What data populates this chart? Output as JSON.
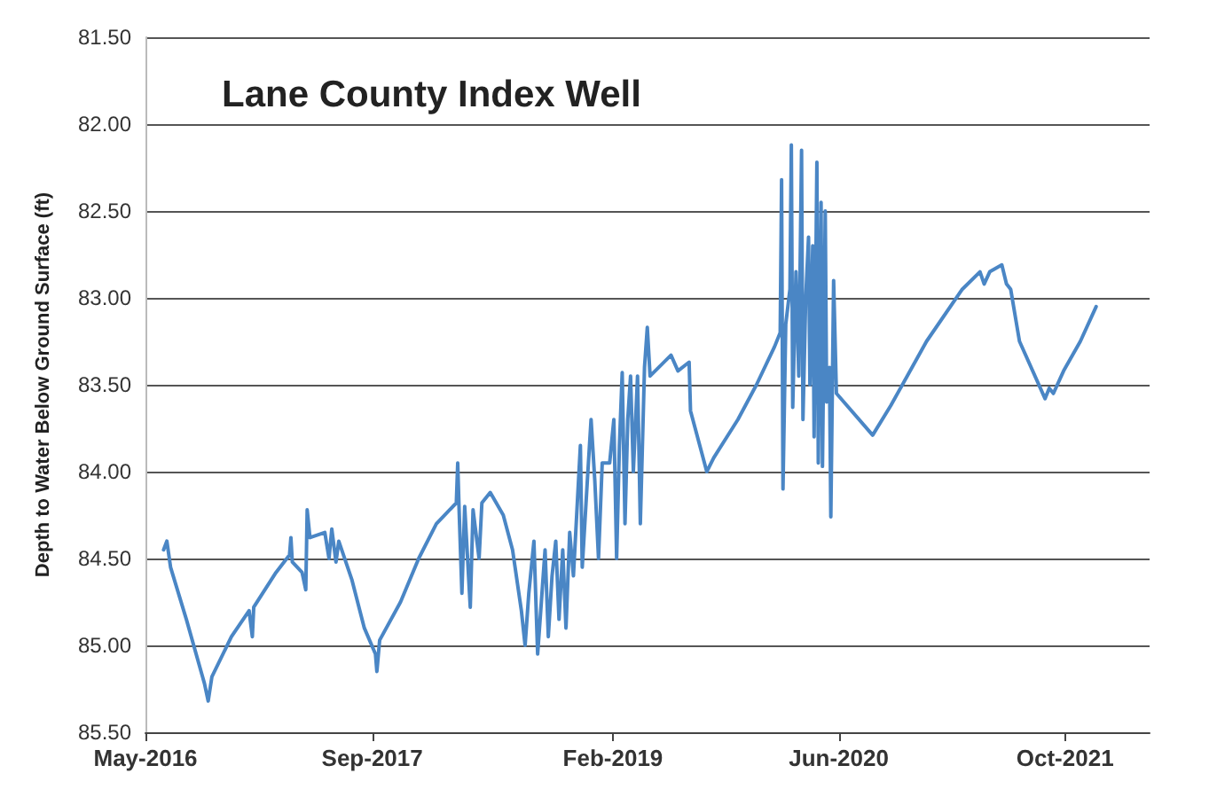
{
  "chart_data": {
    "type": "line",
    "title": "Lane County Index Well",
    "ylabel": "Depth to Water Below Ground Surface (ft)",
    "xlim": [
      "2016-05-01",
      "2022-04-01"
    ],
    "xticks": [
      {
        "value": "2016-05-01",
        "label": "May-2016"
      },
      {
        "value": "2017-09-01",
        "label": "Sep-2017"
      },
      {
        "value": "2019-02-01",
        "label": "Feb-2019"
      },
      {
        "value": "2020-06-01",
        "label": "Jun-2020"
      },
      {
        "value": "2021-10-01",
        "label": "Oct-2021"
      }
    ],
    "ylim": [
      85.5,
      81.5
    ],
    "yticks": [
      {
        "value": 81.5,
        "label": "81.50"
      },
      {
        "value": 82,
        "label": "82.00"
      },
      {
        "value": 82.5,
        "label": "82.50"
      },
      {
        "value": 83,
        "label": "83.00"
      },
      {
        "value": 83.5,
        "label": "83.50"
      },
      {
        "value": 84,
        "label": "84.00"
      },
      {
        "value": 84.5,
        "label": "84.50"
      },
      {
        "value": 85,
        "label": "85.00"
      },
      {
        "value": 85.5,
        "label": "85.50"
      }
    ],
    "grid": "y",
    "x": [
      "2016-06-09",
      "2016-06-16",
      "2016-06-24",
      "2016-07-28",
      "2016-09-05",
      "2016-09-13",
      "2016-09-21",
      "2016-11-02",
      "2016-12-10",
      "2016-12-17",
      "2016-12-20",
      "2017-02-06",
      "2017-03-07",
      "2017-03-10",
      "2017-03-13",
      "2017-04-03",
      "2017-04-11",
      "2017-04-14",
      "2017-04-20",
      "2017-05-22",
      "2017-05-31",
      "2017-06-06",
      "2017-06-15",
      "2017-06-21",
      "2017-07-19",
      "2017-08-15",
      "2017-09-08",
      "2017-09-11",
      "2017-09-17",
      "2017-11-01",
      "2017-12-10",
      "2018-01-17",
      "2018-03-01",
      "2018-03-04",
      "2018-03-07",
      "2018-03-13",
      "2018-03-19",
      "2018-03-31",
      "2018-04-06",
      "2018-04-19",
      "2018-04-25",
      "2018-05-13",
      "2018-06-10",
      "2018-06-30",
      "2018-07-19",
      "2018-07-27",
      "2018-08-04",
      "2018-08-15",
      "2018-08-23",
      "2018-08-31",
      "2018-09-08",
      "2018-09-15",
      "2018-09-23",
      "2018-10-01",
      "2018-10-08",
      "2018-10-16",
      "2018-10-23",
      "2018-10-31",
      "2018-11-08",
      "2018-11-23",
      "2018-11-27",
      "2018-12-08",
      "2018-12-16",
      "2018-12-24",
      "2019-01-01",
      "2019-01-09",
      "2019-01-25",
      "2019-02-03",
      "2019-02-09",
      "2019-02-15",
      "2019-02-21",
      "2019-02-27",
      "2019-03-05",
      "2019-03-11",
      "2019-03-17",
      "2019-03-26",
      "2019-04-01",
      "2019-04-10",
      "2019-04-16",
      "2019-04-22",
      "2019-06-06",
      "2019-06-21",
      "2019-07-15",
      "2019-07-18",
      "2019-08-22",
      "2019-09-06",
      "2019-10-28",
      "2019-12-07",
      "2020-01-15",
      "2020-01-27",
      "2020-01-30",
      "2020-02-02",
      "2020-02-08",
      "2020-02-17",
      "2020-02-20",
      "2020-02-23",
      "2020-03-01",
      "2020-03-07",
      "2020-03-13",
      "2020-03-16",
      "2020-03-22",
      "2020-03-28",
      "2020-03-31",
      "2020-04-06",
      "2020-04-09",
      "2020-04-15",
      "2020-04-18",
      "2020-04-24",
      "2020-04-27",
      "2020-05-03",
      "2020-05-06",
      "2020-05-12",
      "2020-05-15",
      "2020-05-21",
      "2020-05-27",
      "2020-08-13",
      "2020-09-21",
      "2020-12-07",
      "2021-02-22",
      "2021-04-01",
      "2021-04-10",
      "2021-04-22",
      "2021-05-18",
      "2021-05-28",
      "2021-06-06",
      "2021-06-25",
      "2021-08-19",
      "2021-08-28",
      "2021-09-06",
      "2021-09-28",
      "2021-11-03",
      "2021-12-07"
    ],
    "series": [
      {
        "color": "#4a86c5",
        "values": [
          84.45,
          84.4,
          84.55,
          84.85,
          85.22,
          85.32,
          85.18,
          84.95,
          84.8,
          84.95,
          84.78,
          84.58,
          84.48,
          84.38,
          84.52,
          84.58,
          84.68,
          84.22,
          84.38,
          84.35,
          84.5,
          84.33,
          84.52,
          84.4,
          84.62,
          84.9,
          85.05,
          85.15,
          84.97,
          84.75,
          84.5,
          84.3,
          84.18,
          83.95,
          84.22,
          84.7,
          84.2,
          84.78,
          84.22,
          84.5,
          84.18,
          84.12,
          84.25,
          84.45,
          84.8,
          85.0,
          84.7,
          84.4,
          85.05,
          84.75,
          84.45,
          84.95,
          84.6,
          84.4,
          84.85,
          84.45,
          84.9,
          84.35,
          84.6,
          83.85,
          84.55,
          84.05,
          83.7,
          84.05,
          84.5,
          83.95,
          83.95,
          83.7,
          84.5,
          83.85,
          83.43,
          84.3,
          83.7,
          83.45,
          84.0,
          83.45,
          84.3,
          83.4,
          83.17,
          83.45,
          83.33,
          83.42,
          83.37,
          83.65,
          84.0,
          83.92,
          83.7,
          83.5,
          83.28,
          83.2,
          82.32,
          84.1,
          83.15,
          82.95,
          82.12,
          83.63,
          82.85,
          83.45,
          82.15,
          83.7,
          83.0,
          82.65,
          83.5,
          82.7,
          83.8,
          82.22,
          83.95,
          82.45,
          83.97,
          82.5,
          83.6,
          83.4,
          84.26,
          82.9,
          83.55,
          83.79,
          83.62,
          83.25,
          82.95,
          82.85,
          82.92,
          82.85,
          82.81,
          82.92,
          82.95,
          83.25,
          83.58,
          83.52,
          83.55,
          83.42,
          83.25,
          83.05
        ]
      }
    ]
  }
}
